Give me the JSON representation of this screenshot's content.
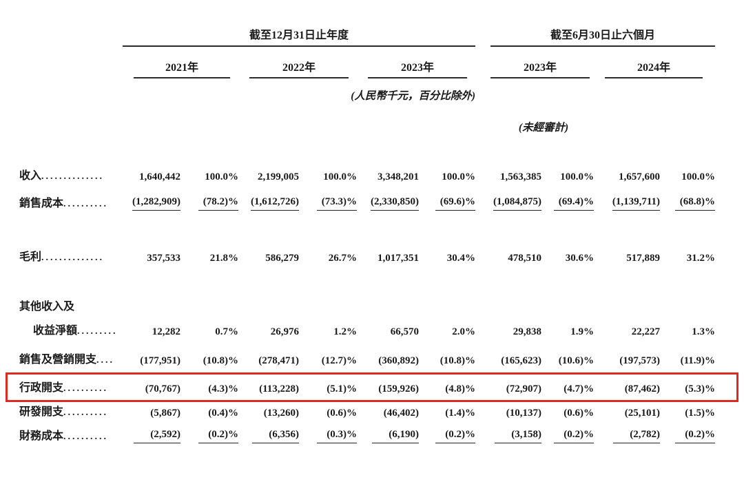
{
  "table": {
    "period_groups": [
      {
        "label": "截至12月31日止年度"
      },
      {
        "label": "截至6月30日止六個月"
      }
    ],
    "year_headers": [
      "2021年",
      "2022年",
      "2023年",
      "2023年",
      "2024年"
    ],
    "unit_note": "(人民幣千元，百分比除外)",
    "unaudited_note": "(未經審計)",
    "rows": [
      {
        "label": "收入",
        "leader": "..............",
        "indent": false,
        "underline": false,
        "highlight": false,
        "cells": [
          "1,640,442",
          "100.0%",
          "2,199,005",
          "100.0%",
          "3,348,201",
          "100.0%",
          "1,563,385",
          "100.0%",
          "1,657,600",
          "100.0%"
        ]
      },
      {
        "label": "銷售成本",
        "leader": "..........",
        "indent": false,
        "underline": true,
        "highlight": false,
        "cells": [
          "(1,282,909)",
          "(78.2)%",
          "(1,612,726)",
          "(73.3)%",
          "(2,330,850)",
          "(69.6)%",
          "(1,084,875)",
          "(69.4)%",
          "(1,139,711)",
          "(68.8)%"
        ]
      },
      {
        "label": "毛利",
        "leader": "..............",
        "indent": false,
        "underline": false,
        "highlight": false,
        "cells": [
          "357,533",
          "21.8%",
          "586,279",
          "26.7%",
          "1,017,351",
          "30.4%",
          "478,510",
          "30.6%",
          "517,889",
          "31.2%"
        ]
      },
      {
        "label": "其他收入及",
        "leader": "",
        "indent": false,
        "underline": false,
        "highlight": false,
        "cells": []
      },
      {
        "label": "收益淨額",
        "leader": ".........",
        "indent": true,
        "underline": false,
        "highlight": false,
        "cells": [
          "12,282",
          "0.7%",
          "26,976",
          "1.2%",
          "66,570",
          "2.0%",
          "29,838",
          "1.9%",
          "22,227",
          "1.3%"
        ]
      },
      {
        "label": "銷售及營銷開支",
        "leader": "....",
        "indent": false,
        "underline": false,
        "highlight": true,
        "cells": [
          "(177,951)",
          "(10.8)%",
          "(278,471)",
          "(12.7)%",
          "(360,892)",
          "(10.8)%",
          "(165,623)",
          "(10.6)%",
          "(197,573)",
          "(11.9)%"
        ]
      },
      {
        "label": "行政開支",
        "leader": "..........",
        "indent": false,
        "underline": false,
        "highlight": false,
        "cells": [
          "(70,767)",
          "(4.3)%",
          "(113,228)",
          "(5.1)%",
          "(159,926)",
          "(4.8)%",
          "(72,907)",
          "(4.7)%",
          "(87,462)",
          "(5.3)%"
        ]
      },
      {
        "label": "研發開支",
        "leader": "..........",
        "indent": false,
        "underline": false,
        "highlight": false,
        "cells": [
          "(5,867)",
          "(0.4)%",
          "(13,260)",
          "(0.6)%",
          "(46,402)",
          "(1.4)%",
          "(10,137)",
          "(0.6)%",
          "(25,101)",
          "(1.5)%"
        ]
      },
      {
        "label": "財務成本",
        "leader": "..........",
        "indent": false,
        "underline": true,
        "highlight": false,
        "cells": [
          "(2,592)",
          "(0.2)%",
          "(6,356)",
          "(0.3)%",
          "(6,190)",
          "(0.2)%",
          "(3,158)",
          "(0.2)%",
          "(2,782)",
          "(0.2)%"
        ]
      }
    ]
  },
  "colors": {
    "highlight_border": "#d92b21",
    "rule_line": "#2a2a2a",
    "text": "#1a1a1a"
  }
}
